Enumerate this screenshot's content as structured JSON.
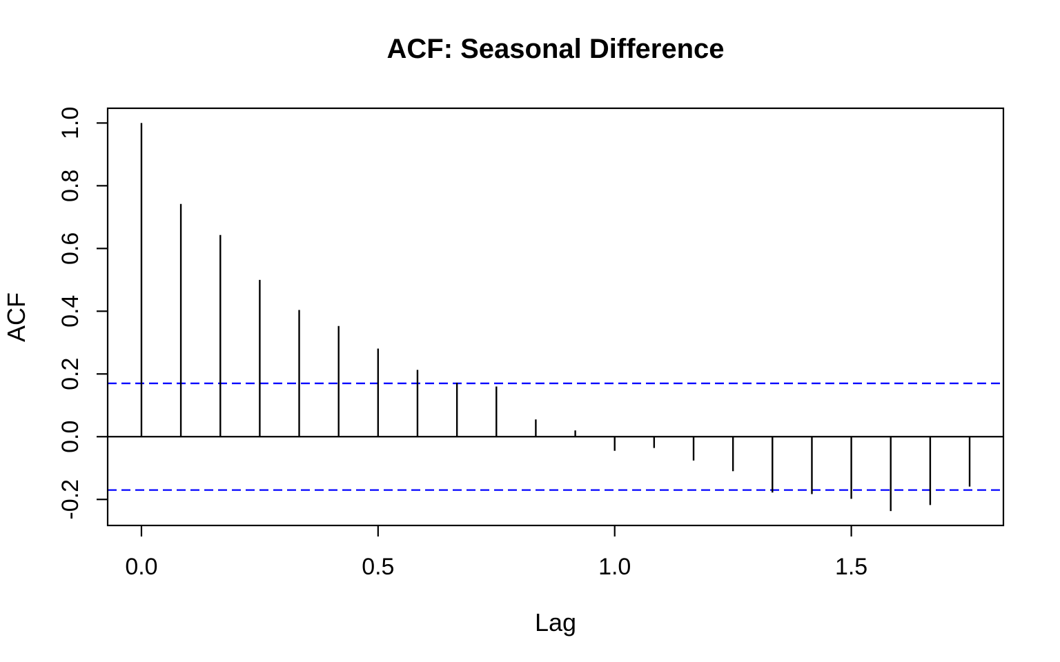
{
  "chart_data": {
    "type": "bar",
    "subtype": "acf-stem-plot",
    "title": "ACF: Seasonal Difference",
    "xlabel": "Lag",
    "ylabel": "ACF",
    "x": [
      0,
      0.0833,
      0.1667,
      0.25,
      0.3333,
      0.4167,
      0.5,
      0.5833,
      0.6667,
      0.75,
      0.8333,
      0.9167,
      1,
      1.0833,
      1.1667,
      1.25,
      1.3333,
      1.4167,
      1.5,
      1.5833,
      1.6667,
      1.75
    ],
    "values": [
      1.0,
      0.742,
      0.643,
      0.5,
      0.404,
      0.353,
      0.281,
      0.213,
      0.172,
      0.16,
      0.055,
      0.02,
      -0.045,
      -0.036,
      -0.076,
      -0.11,
      -0.178,
      -0.183,
      -0.198,
      -0.237,
      -0.218,
      -0.159
    ],
    "conf_bounds": {
      "upper": 0.17,
      "lower": -0.17,
      "color": "#0000FF",
      "line_style": "dashed"
    },
    "zero_line": true,
    "x_ticks": {
      "values": [
        0.0,
        0.5,
        1.0,
        1.5
      ],
      "labels": [
        "0.0",
        "0.5",
        "1.0",
        "1.5"
      ]
    },
    "y_ticks": {
      "values": [
        -0.2,
        0.0,
        0.2,
        0.4,
        0.6,
        0.8,
        1.0
      ],
      "labels": [
        "-0.2",
        "0.0",
        "0.2",
        "0.4",
        "0.6",
        "0.8",
        "1.0"
      ]
    },
    "xlim": [
      -0.0714,
      1.8214
    ],
    "ylim": [
      -0.283,
      1.047
    ],
    "bar_color": "#000000",
    "axis_color": "#000000",
    "grid": false
  }
}
